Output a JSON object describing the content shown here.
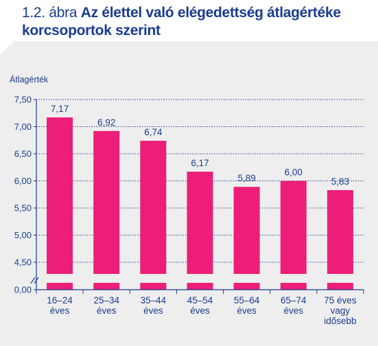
{
  "figure": {
    "number": "1.2. ábra",
    "title": "Az élettel való elégedettség átlagértéke korcsoportok szerint"
  },
  "colors": {
    "bar": "#ec1e79",
    "text": "#1a3c8f",
    "axis": "#1a3c8f",
    "background": "#eeeeee"
  },
  "chart_data": {
    "type": "bar",
    "title": "Az élettel való elégedettség átlagértéke korcsoportok szerint",
    "ylabel": "Átlagérték",
    "xlabel": "",
    "categories": [
      [
        "16–24",
        "éves"
      ],
      [
        "25–34",
        "éves"
      ],
      [
        "35–44",
        "éves"
      ],
      [
        "45–54",
        "éves"
      ],
      [
        "55–64",
        "éves"
      ],
      [
        "65–74",
        "éves"
      ],
      [
        "75 éves",
        "vagy",
        "idősebb"
      ]
    ],
    "values": [
      7.17,
      6.92,
      6.74,
      6.17,
      5.89,
      6.0,
      5.83
    ],
    "value_labels": [
      "7,17",
      "6,92",
      "6,74",
      "6,17",
      "5,89",
      "6,00",
      "5,83"
    ],
    "y_ticks": [
      0,
      4.5,
      5.0,
      5.5,
      6.0,
      6.5,
      7.0,
      7.5
    ],
    "y_tick_labels": [
      "0,00",
      "4,50",
      "5,00",
      "5,50",
      "6,00",
      "6,50",
      "7,00",
      "7,50"
    ],
    "ylim": [
      0,
      7.5
    ],
    "axis_break": true,
    "grid": true
  }
}
